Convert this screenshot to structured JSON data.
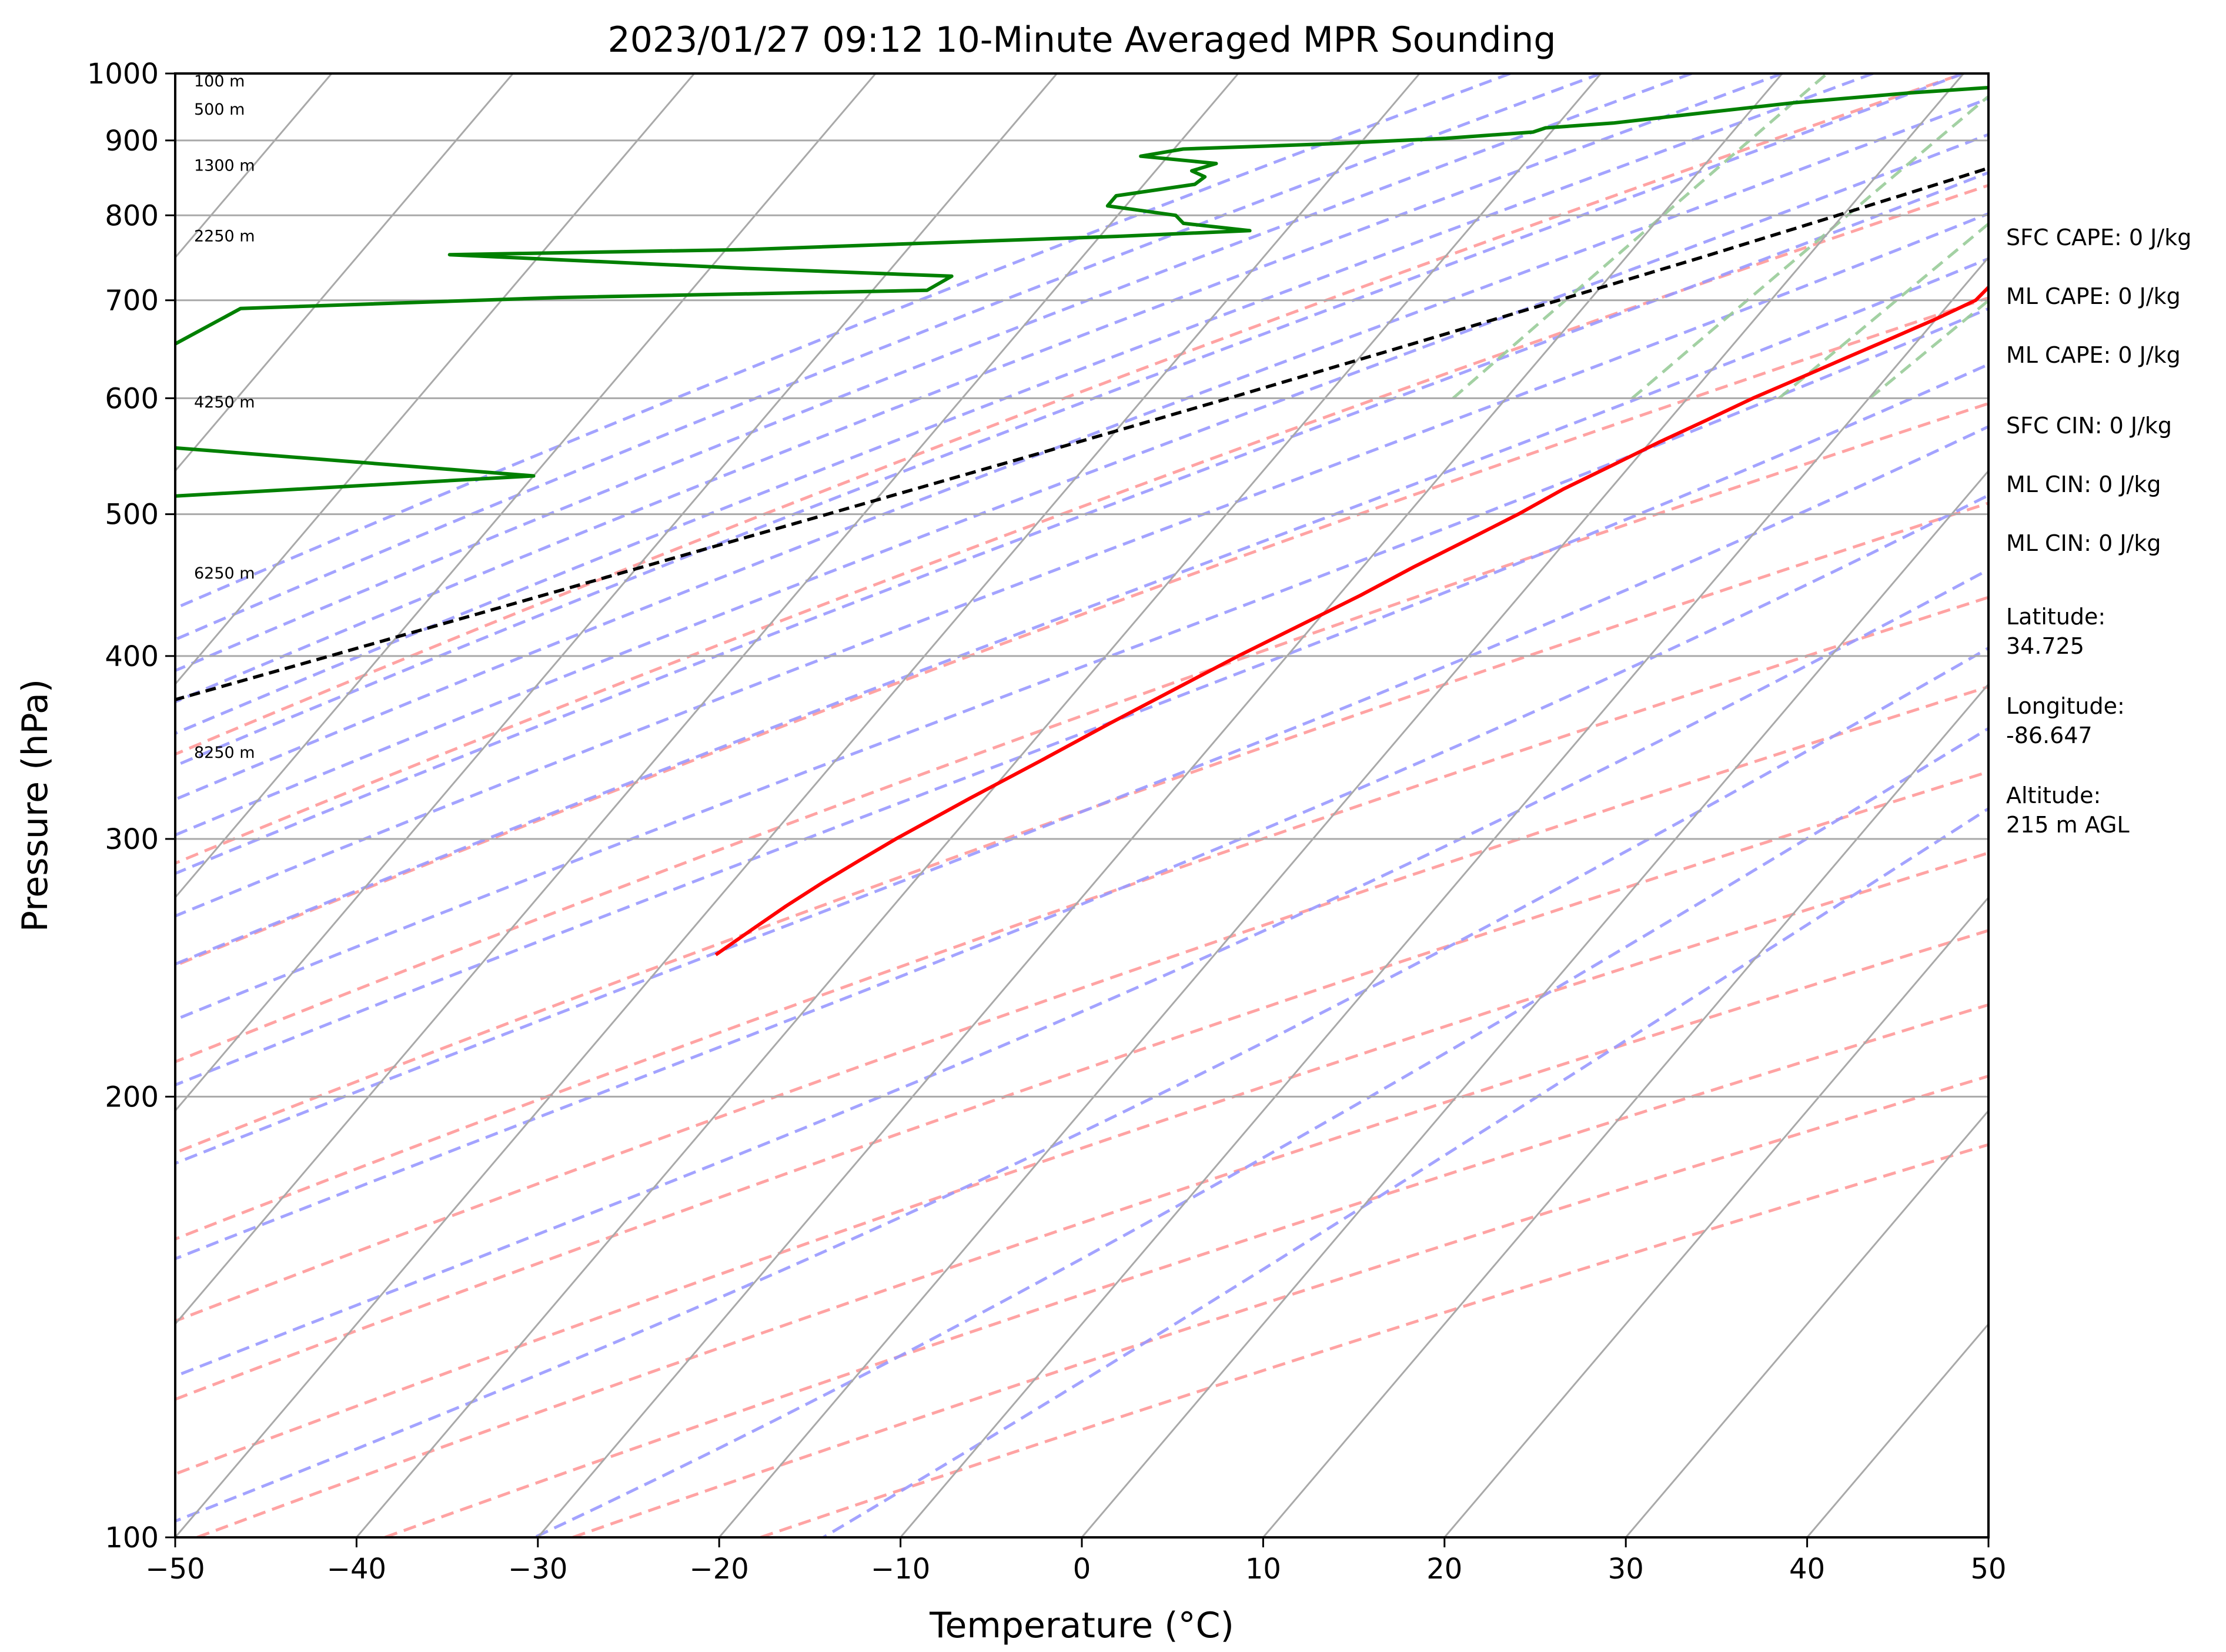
{
  "chart_data": {
    "type": "line",
    "title": "2023/01/27 09:12 10-Minute Averaged MPR Sounding",
    "xlabel": "Temperature (°C)",
    "ylabel": "Pressure (hPa)",
    "xlim": [
      -50,
      50
    ],
    "ylim": [
      1000,
      100
    ],
    "y_scale": "log",
    "x_ticks": [
      "−50",
      "−40",
      "−30",
      "−20",
      "−10",
      "0",
      "10",
      "20",
      "30",
      "40",
      "50"
    ],
    "y_ticks": [
      "100",
      "200",
      "300",
      "400",
      "500",
      "600",
      "700",
      "800",
      "900",
      "1000"
    ],
    "grid": true,
    "series": [
      {
        "color": "#ff0000",
        "pressure": [
          1000,
          995,
          985,
          970,
          955,
          940,
          925,
          910,
          895,
          880,
          865,
          850,
          840,
          830,
          820,
          810,
          800,
          790,
          775,
          760,
          745,
          730,
          715,
          700,
          680,
          660,
          640,
          620,
          600,
          580,
          560,
          540,
          520,
          500,
          480,
          460,
          440,
          420,
          400,
          380,
          360,
          340,
          320,
          300,
          290,
          280,
          270,
          260,
          250
        ],
        "temperature": [
          -2.4,
          -0.8,
          0.3,
          -0.4,
          -2.0,
          -3.8,
          -5.1,
          -5.8,
          -6.4,
          -6.9,
          -7.3,
          -7.6,
          -7.5,
          -7.3,
          -7.2,
          -7.3,
          -7.2,
          -7.3,
          -7.5,
          -7.7,
          -8.1,
          -8.3,
          -8.6,
          -8.7,
          -10.0,
          -11.5,
          -13.1,
          -14.7,
          -16.4,
          -17.9,
          -19.5,
          -21.0,
          -22.6,
          -23.9,
          -25.5,
          -27.2,
          -28.8,
          -30.7,
          -32.7,
          -34.6,
          -36.6,
          -38.6,
          -40.8,
          -43.0,
          -44.0,
          -45.0,
          -45.9,
          -46.7,
          -47.5
        ]
      },
      {
        "color": "#008000",
        "pressure": [
          1000,
          992,
          983,
          970,
          955,
          940,
          925,
          918,
          912,
          903,
          895,
          888,
          878,
          868,
          858,
          850,
          840,
          825,
          812,
          800,
          790,
          781,
          774,
          758,
          752,
          736,
          727,
          711,
          703,
          691,
          566,
          563,
          531,
          510,
          508,
          481,
          477,
          460,
          449,
          428,
          402,
          381,
          365,
          343,
          330,
          325,
          307,
          302,
          283,
          275,
          268,
          255,
          249
        ],
        "temperature": [
          -2.4,
          -9.0,
          -15.5,
          -22.0,
          -28.0,
          -32.5,
          -37.0,
          -40.5,
          -41.0,
          -45.5,
          -52.0,
          -59.5,
          -61.5,
          -57.0,
          -58.0,
          -57.0,
          -57.2,
          -61.0,
          -61.0,
          -56.8,
          -56.0,
          -52.0,
          -59.0,
          -79.0,
          -95.0,
          -78.0,
          -66.3,
          -67.0,
          -87.0,
          -104.0,
          -111.0,
          -108.0,
          -80.0,
          -104.0,
          -106.0,
          -135.0,
          -115.5,
          -102.6,
          -106.4,
          -105.0,
          -109.0,
          -109.3,
          -105.3,
          -127.0,
          -125.0,
          -117.0,
          -119.0,
          -132.0,
          -130.0,
          -125.0,
          -127.5,
          -114.0,
          -122.0
        ]
      },
      {
        "color": "#000000",
        "dashed": true,
        "pressure": [
          1000,
          950,
          900,
          850,
          800,
          750,
          700,
          650,
          600,
          550,
          500,
          450,
          400,
          350,
          310
        ],
        "temperature": [
          -2.4,
          -6.4,
          -10.7,
          -15.3,
          -20.3,
          -25.7,
          -31.7,
          -38.2,
          -45.3,
          -53.2,
          -62.0,
          -71.8,
          -82.8,
          -95.4,
          -106.5
        ]
      }
    ],
    "height_labels": [
      {
        "text": "100 m",
        "pressure": 989
      },
      {
        "text": "500 m",
        "pressure": 946
      },
      {
        "text": "1300 m",
        "pressure": 866
      },
      {
        "text": "2250 m",
        "pressure": 775
      },
      {
        "text": "4250 m",
        "pressure": 597
      },
      {
        "text": "6250 m",
        "pressure": 456
      },
      {
        "text": "8250 m",
        "pressure": 344
      }
    ],
    "stats": [
      "SFC CAPE: 0 J/kg",
      "ML CAPE: 0 J/kg",
      "ML CAPE: 0 J/kg",
      "SFC CIN: 0 J/kg",
      "ML CIN: 0 J/kg",
      "ML CIN: 0 J/kg"
    ],
    "location": {
      "latitude_label": "Latitude:",
      "latitude": "34.725",
      "longitude_label": "Longitude:",
      "longitude": "-86.647",
      "altitude_label": "Altitude:",
      "altitude": "215 m AGL"
    },
    "colors": {
      "isotherm": "#a9a9a9",
      "dry_adiabat": "#ff9999",
      "moist_adiabat": "#9999ff",
      "mixing_ratio": "#99cc99"
    }
  }
}
